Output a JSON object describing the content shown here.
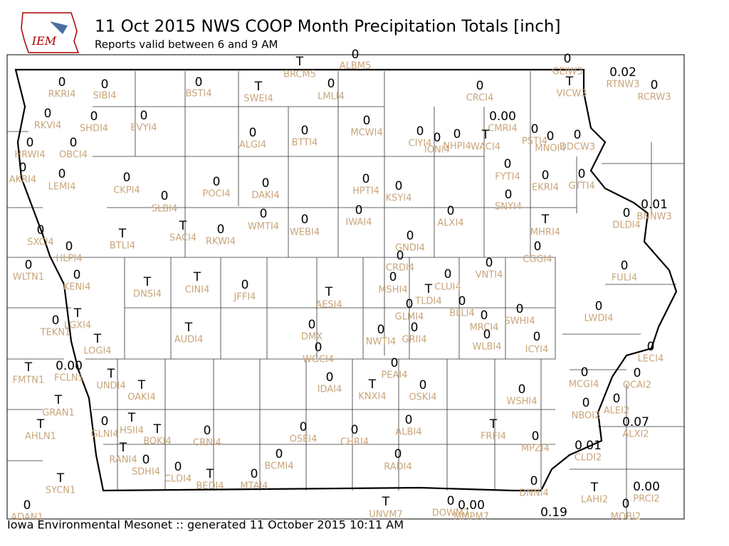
{
  "header": {
    "logo_text": "IEM",
    "title": "11 Oct 2015 NWS COOP Month Precipitation Totals [inch]",
    "subtitle": "Reports valid between 6 and 9 AM"
  },
  "footer": "Iowa Environmental Mesonet :: generated 11 October 2015 10:11 AM",
  "stations": [
    {
      "value": "T",
      "id": "BRCM5"
    },
    {
      "value": "0",
      "id": "ALBM5"
    },
    {
      "value": "0",
      "id": "RKRI4"
    },
    {
      "value": "0",
      "id": "SIBI4"
    },
    {
      "value": "0",
      "id": "BSTI4"
    },
    {
      "value": "T",
      "id": "SWEI4"
    },
    {
      "value": "0",
      "id": "LMLI4"
    },
    {
      "value": "0",
      "id": "CRCI4"
    },
    {
      "value": "0",
      "id": "GEIW3"
    },
    {
      "value": "T",
      "id": "VICW3"
    },
    {
      "value": "0.02",
      "id": "RTNW3"
    },
    {
      "value": "0",
      "id": "RCRW3"
    },
    {
      "value": "0",
      "id": "RKVI4"
    },
    {
      "value": "0",
      "id": "SHDI4"
    },
    {
      "value": "0",
      "id": "EVYI4"
    },
    {
      "value": "0",
      "id": "MCWI4"
    },
    {
      "value": "0.00",
      "id": "CMRI4"
    },
    {
      "value": "0",
      "id": "ALGI4"
    },
    {
      "value": "0",
      "id": "BTTI4"
    },
    {
      "value": "0",
      "id": "CIYI4"
    },
    {
      "value": "0",
      "id": "IONI4"
    },
    {
      "value": "0",
      "id": "NHPI4"
    },
    {
      "value": "T",
      "id": "WACI4"
    },
    {
      "value": "0",
      "id": "PSTI4"
    },
    {
      "value": "0",
      "id": "MNOI4"
    },
    {
      "value": "0",
      "id": "DDCW3"
    },
    {
      "value": "0",
      "id": "HRWI4"
    },
    {
      "value": "0",
      "id": "OBCI4"
    },
    {
      "value": "0",
      "id": "AKRI4"
    },
    {
      "value": "0",
      "id": "LEMI4"
    },
    {
      "value": "0",
      "id": "CKPI4"
    },
    {
      "value": "0",
      "id": "POCI4"
    },
    {
      "value": "0",
      "id": "DAKI4"
    },
    {
      "value": "0",
      "id": "HPTI4"
    },
    {
      "value": "0",
      "id": "KSYI4"
    },
    {
      "value": "0",
      "id": "FYTI4"
    },
    {
      "value": "0",
      "id": "EKRI4"
    },
    {
      "value": "0",
      "id": "GTTI4"
    },
    {
      "value": "0",
      "id": "SLBI4"
    },
    {
      "value": "0",
      "id": "SNYI4"
    },
    {
      "value": "0",
      "id": "WMTI4"
    },
    {
      "value": "0",
      "id": "IWAI4"
    },
    {
      "value": "0",
      "id": "ALXI4"
    },
    {
      "value": "0.01",
      "id": "BNNW3"
    },
    {
      "value": "0",
      "id": "DLDI4"
    },
    {
      "value": "0",
      "id": "WEBI4"
    },
    {
      "value": "T",
      "id": "MHRI4"
    },
    {
      "value": "0",
      "id": "SXCI4"
    },
    {
      "value": "T",
      "id": "BTLI4"
    },
    {
      "value": "T",
      "id": "SACI4"
    },
    {
      "value": "0",
      "id": "RKWI4"
    },
    {
      "value": "0",
      "id": "GNDI4"
    },
    {
      "value": "0",
      "id": "HLPI4"
    },
    {
      "value": "0",
      "id": "CGGI4"
    },
    {
      "value": "0",
      "id": "WLTN1"
    },
    {
      "value": "0",
      "id": "CRDI4"
    },
    {
      "value": "0",
      "id": "VNTI4"
    },
    {
      "value": "0",
      "id": "FULI4"
    },
    {
      "value": "0",
      "id": "KENI4"
    },
    {
      "value": "T",
      "id": "DNSI4"
    },
    {
      "value": "T",
      "id": "CINI4"
    },
    {
      "value": "0",
      "id": "JFFI4"
    },
    {
      "value": "0",
      "id": "MSHI4"
    },
    {
      "value": "0",
      "id": "CLUI4"
    },
    {
      "value": "T",
      "id": "TLDI4"
    },
    {
      "value": "T",
      "id": "AESI4"
    },
    {
      "value": "0",
      "id": "BLLI4"
    },
    {
      "value": "0",
      "id": "GLMI4"
    },
    {
      "value": "0",
      "id": "SWHI4"
    },
    {
      "value": "0",
      "id": "LWDI4"
    },
    {
      "value": "0",
      "id": "TEKN1"
    },
    {
      "value": "T",
      "id": "LGXI4"
    },
    {
      "value": "0",
      "id": "MRCI4"
    },
    {
      "value": "0",
      "id": "DMX"
    },
    {
      "value": "T",
      "id": "AUDI4"
    },
    {
      "value": "0",
      "id": "NWTI4"
    },
    {
      "value": "0",
      "id": "GRII4"
    },
    {
      "value": "0",
      "id": "WLBI4"
    },
    {
      "value": "0",
      "id": "ICYI4"
    },
    {
      "value": "T",
      "id": "LOGI4"
    },
    {
      "value": "0",
      "id": "WGCI4"
    },
    {
      "value": "0",
      "id": "LECI4"
    },
    {
      "value": "T",
      "id": "FMTN1"
    },
    {
      "value": "0.00",
      "id": "FCLN1"
    },
    {
      "value": "T",
      "id": "UNDI4"
    },
    {
      "value": "0",
      "id": "PEAI4"
    },
    {
      "value": "0",
      "id": "MCGI4"
    },
    {
      "value": "0",
      "id": "QCAI2"
    },
    {
      "value": "0",
      "id": "IDAI4"
    },
    {
      "value": "T",
      "id": "KNXI4"
    },
    {
      "value": "0",
      "id": "OSKI4"
    },
    {
      "value": "T",
      "id": "OAKI4"
    },
    {
      "value": "0",
      "id": "WSHI4"
    },
    {
      "value": "0",
      "id": "ALEI2"
    },
    {
      "value": "T",
      "id": "GRAN1"
    },
    {
      "value": "0",
      "id": "NBOI2"
    },
    {
      "value": "0.07",
      "id": "ALXI2"
    },
    {
      "value": "0",
      "id": "GLNI4"
    },
    {
      "value": "T",
      "id": "HSII4"
    },
    {
      "value": "T",
      "id": "AHLN1"
    },
    {
      "value": "T",
      "id": "BOKI4"
    },
    {
      "value": "0",
      "id": "CRNI4"
    },
    {
      "value": "0",
      "id": "OSEI4"
    },
    {
      "value": "0",
      "id": "CHRI4"
    },
    {
      "value": "0",
      "id": "ALBI4"
    },
    {
      "value": "T",
      "id": "FRFI4"
    },
    {
      "value": "0",
      "id": "MPZI4"
    },
    {
      "value": "0.01",
      "id": "CLDI2"
    },
    {
      "value": "T",
      "id": "RANI4"
    },
    {
      "value": "0",
      "id": "BCMI4"
    },
    {
      "value": "0",
      "id": "RADI4"
    },
    {
      "value": "0",
      "id": "SDHI4"
    },
    {
      "value": "0",
      "id": "CLDI4"
    },
    {
      "value": "T",
      "id": "BEDI4"
    },
    {
      "value": "0",
      "id": "MTAI4"
    },
    {
      "value": "T",
      "id": "SYCN1"
    },
    {
      "value": "0",
      "id": "DNNI4"
    },
    {
      "value": "T",
      "id": "LAHI2"
    },
    {
      "value": "0.00",
      "id": "PRCI2"
    },
    {
      "value": "0",
      "id": "ADAN1"
    },
    {
      "value": "T",
      "id": "UNVM7"
    },
    {
      "value": "0",
      "id": "DOWM7"
    },
    {
      "value": "0.00",
      "id": "MMPM7"
    },
    {
      "value": "0.19"
    },
    {
      "value": "0",
      "id": "MOBI2"
    }
  ]
}
